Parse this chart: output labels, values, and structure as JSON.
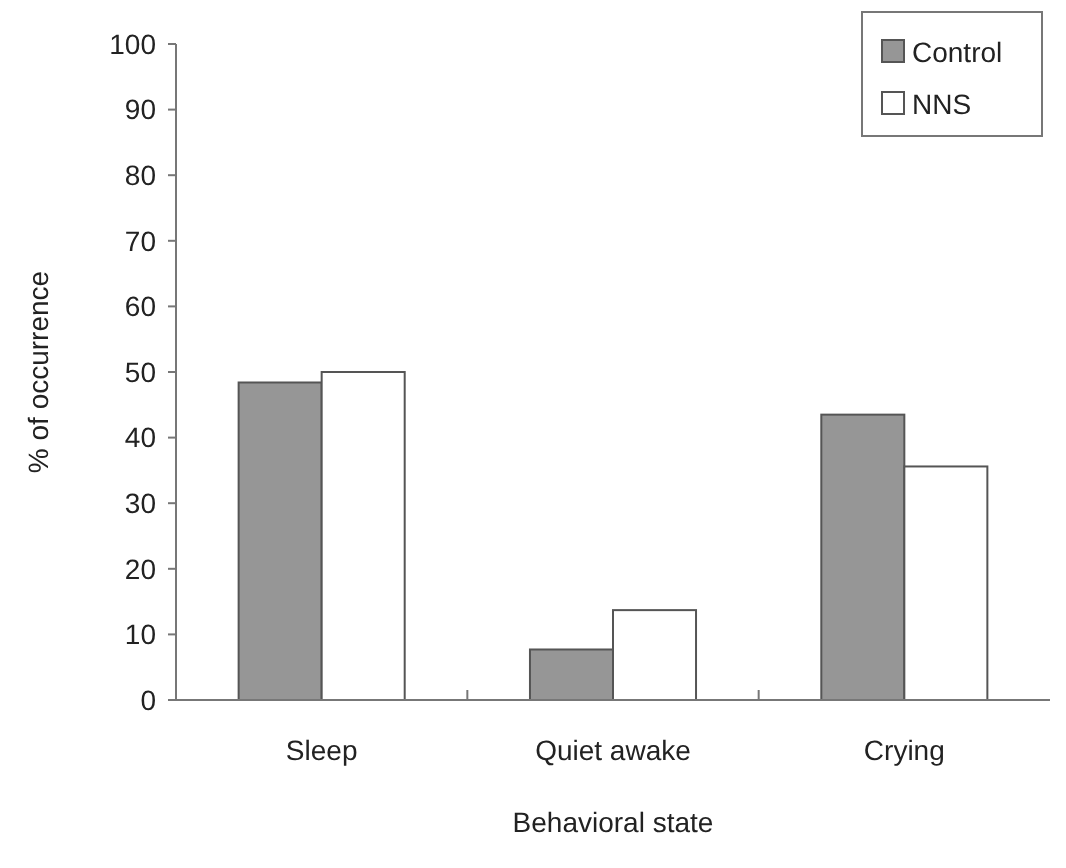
{
  "chart_data": {
    "type": "bar",
    "xlabel": "Behavioral state",
    "ylabel": "% of occurrence",
    "categories": [
      "Sleep",
      "Quiet awake",
      "Crying"
    ],
    "series": [
      {
        "name": "Control",
        "color": "#969696",
        "values": [
          48.4,
          7.7,
          43.5
        ]
      },
      {
        "name": "NNS",
        "color": "#ffffff",
        "values": [
          50,
          13.7,
          35.6
        ]
      }
    ],
    "ylim": [
      0,
      100
    ],
    "yticks": [
      0,
      10,
      20,
      30,
      40,
      50,
      60,
      70,
      80,
      90,
      100
    ],
    "grid": false,
    "legend": "top right"
  }
}
